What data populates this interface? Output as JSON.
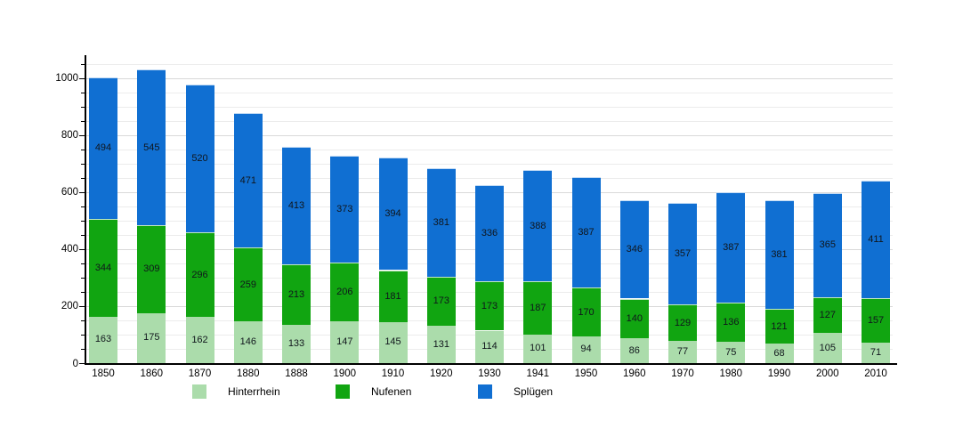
{
  "chart_data": {
    "type": "bar",
    "stacked": true,
    "title": "",
    "xlabel": "",
    "ylabel": "",
    "categories": [
      "1850",
      "1860",
      "1870",
      "1880",
      "1888",
      "1900",
      "1910",
      "1920",
      "1930",
      "1941",
      "1950",
      "1960",
      "1970",
      "1980",
      "1990",
      "2000",
      "2010"
    ],
    "series": [
      {
        "name": "Hinterrhein",
        "color": "#abdcab",
        "values": [
          163,
          175,
          162,
          146,
          133,
          147,
          145,
          131,
          114,
          101,
          94,
          86,
          77,
          75,
          68,
          105,
          71
        ]
      },
      {
        "name": "Nufenen",
        "color": "#11a511",
        "values": [
          344,
          309,
          296,
          259,
          213,
          206,
          181,
          173,
          173,
          187,
          170,
          140,
          129,
          136,
          121,
          127,
          157
        ]
      },
      {
        "name": "Splügen",
        "color": "#106fd2",
        "values": [
          494,
          545,
          520,
          471,
          413,
          373,
          394,
          381,
          336,
          388,
          387,
          346,
          357,
          387,
          381,
          365,
          411
        ]
      }
    ],
    "ylim": [
      0,
      1080
    ],
    "yticks": [
      0,
      200,
      400,
      600,
      800,
      1000
    ],
    "minor_grid_step": 50,
    "grid": "horizontal",
    "gridline_minor_color": "#ececec",
    "gridline_major_color": "#d9d9d9",
    "axis_color": "#000000",
    "value_labels": "centered inside each segment",
    "legend_position": "bottom"
  }
}
